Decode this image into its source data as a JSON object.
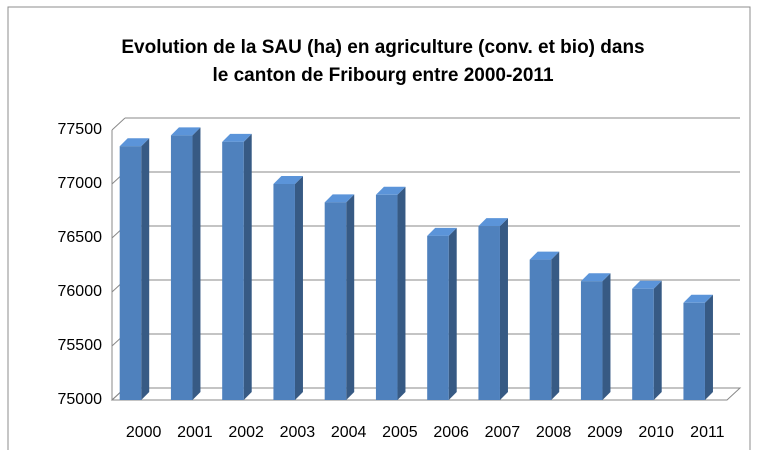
{
  "chart_data": {
    "type": "bar3d",
    "title": [
      "Evolution de la SAU (ha) en agriculture (conv. et bio) dans",
      "le canton de Fribourg entre 2000-2011"
    ],
    "categories": [
      "2000",
      "2001",
      "2002",
      "2003",
      "2004",
      "2005",
      "2006",
      "2007",
      "2008",
      "2009",
      "2010",
      "2011"
    ],
    "values": [
      77350,
      77450,
      77390,
      77000,
      76830,
      76900,
      76520,
      76610,
      76300,
      76100,
      76030,
      75900
    ],
    "color": "#4f81bd",
    "ylim": [
      75000,
      77500
    ],
    "yticks": [
      75000,
      75500,
      76000,
      76500,
      77000,
      77500
    ],
    "grid": true
  }
}
